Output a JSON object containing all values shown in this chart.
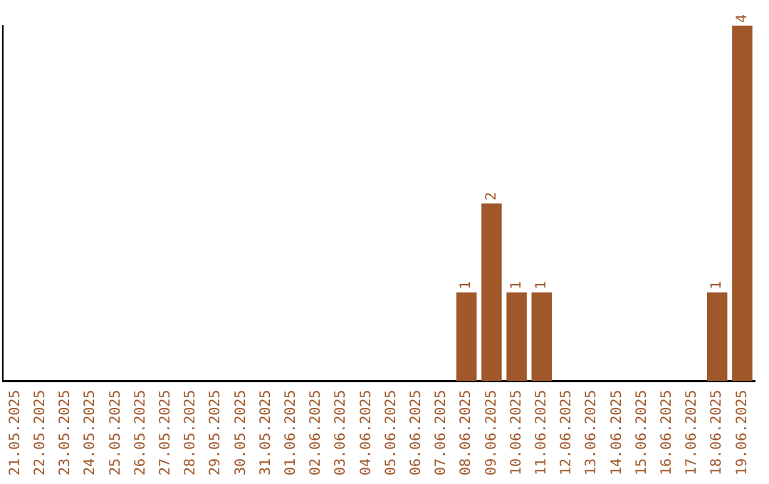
{
  "chart_data": {
    "type": "bar",
    "categories": [
      "21.05.2025",
      "22.05.2025",
      "23.05.2025",
      "24.05.2025",
      "25.05.2025",
      "26.05.2025",
      "27.05.2025",
      "28.05.2025",
      "29.05.2025",
      "30.05.2025",
      "31.05.2025",
      "01.06.2025",
      "02.06.2025",
      "03.06.2025",
      "04.06.2025",
      "05.06.2025",
      "06.06.2025",
      "07.06.2025",
      "08.06.2025",
      "09.06.2025",
      "10.06.2025",
      "11.06.2025",
      "12.06.2025",
      "13.06.2025",
      "14.06.2025",
      "15.06.2025",
      "16.06.2025",
      "17.06.2025",
      "18.06.2025",
      "19.06.2025"
    ],
    "values": [
      null,
      null,
      null,
      null,
      null,
      null,
      null,
      null,
      null,
      null,
      null,
      null,
      null,
      null,
      null,
      null,
      null,
      null,
      1,
      2,
      1,
      1,
      null,
      null,
      null,
      null,
      null,
      null,
      1,
      4
    ],
    "value_labels": [
      null,
      null,
      null,
      null,
      null,
      null,
      null,
      null,
      null,
      null,
      null,
      null,
      null,
      null,
      null,
      null,
      null,
      null,
      "1",
      "2",
      "1",
      "1",
      null,
      null,
      null,
      null,
      null,
      null,
      "1",
      "4"
    ],
    "color": "#a0582a",
    "grid": false,
    "legend": false
  }
}
